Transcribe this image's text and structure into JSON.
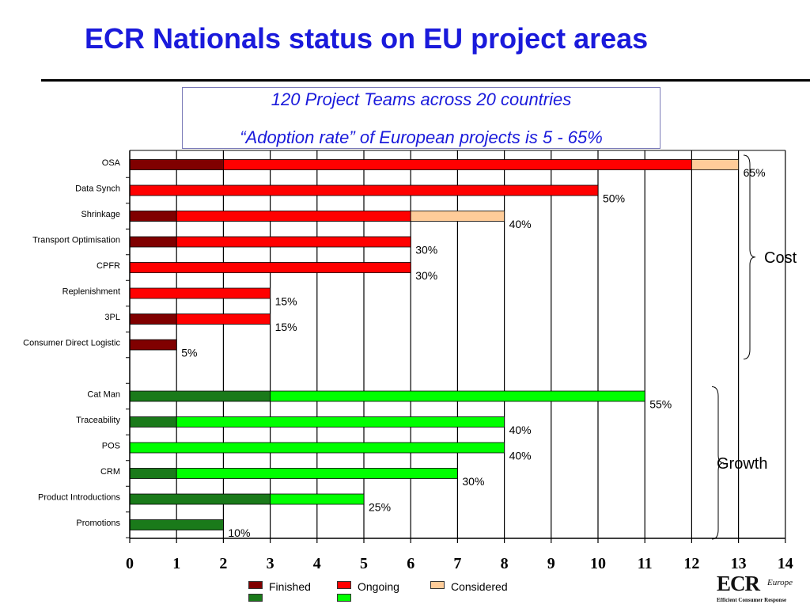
{
  "title": "ECR Nationals status on EU project areas",
  "subtitle": {
    "line1": "120 Project Teams across 20 countries",
    "line2": "“Adoption rate” of European projects is 5 - 65%"
  },
  "chart_data": {
    "type": "bar",
    "orientation": "horizontal",
    "stacked": true,
    "xlim": [
      0,
      14
    ],
    "x_ticks": [
      0,
      1,
      2,
      3,
      4,
      5,
      6,
      7,
      8,
      9,
      10,
      11,
      12,
      13,
      14
    ],
    "grid": "vertical",
    "legend_position": "bottom",
    "groups": [
      {
        "name": "Cost",
        "colors": {
          "Finished": "#800000",
          "Ongoing": "#ff0000",
          "Considered": "#ffcc99"
        },
        "rows": [
          {
            "label": "OSA",
            "Finished": 2,
            "Ongoing": 10,
            "Considered": 1,
            "rate": "65%"
          },
          {
            "label": "Data Synch",
            "Finished": 0,
            "Ongoing": 10,
            "Considered": 0,
            "rate": "50%"
          },
          {
            "label": "Shrinkage",
            "Finished": 1,
            "Ongoing": 5,
            "Considered": 2,
            "rate": "40%"
          },
          {
            "label": "Transport Optimisation",
            "Finished": 1,
            "Ongoing": 5,
            "Considered": 0,
            "rate": "30%"
          },
          {
            "label": "CPFR",
            "Finished": 0,
            "Ongoing": 6,
            "Considered": 0,
            "rate": "30%"
          },
          {
            "label": "Replenishment",
            "Finished": 0,
            "Ongoing": 3,
            "Considered": 0,
            "rate": "15%"
          },
          {
            "label": "3PL",
            "Finished": 1,
            "Ongoing": 2,
            "Considered": 0,
            "rate": "15%"
          },
          {
            "label": "Consumer Direct Logistic",
            "Finished": 1,
            "Ongoing": 0,
            "Considered": 0,
            "rate": "5%"
          }
        ]
      },
      {
        "name": "Growth",
        "colors": {
          "Finished": "#1a7a1a",
          "Ongoing": "#00ff00",
          "Considered": "#ccffcc"
        },
        "rows": [
          {
            "label": "Cat Man",
            "Finished": 3,
            "Ongoing": 8,
            "Considered": 0,
            "rate": "55%"
          },
          {
            "label": "Traceability",
            "Finished": 1,
            "Ongoing": 7,
            "Considered": 0,
            "rate": "40%"
          },
          {
            "label": "POS",
            "Finished": 0,
            "Ongoing": 8,
            "Considered": 0,
            "rate": "40%"
          },
          {
            "label": "CRM",
            "Finished": 1,
            "Ongoing": 6,
            "Considered": 0,
            "rate": "30%"
          },
          {
            "label": "Product Introductions",
            "Finished": 3,
            "Ongoing": 2,
            "Considered": 0,
            "rate": "25%"
          },
          {
            "label": "Promotions",
            "Finished": 2,
            "Ongoing": 0,
            "Considered": 0,
            "rate": "10%"
          }
        ]
      }
    ]
  },
  "legend": {
    "finished": "Finished",
    "ongoing": "Ongoing",
    "considered": "Considered",
    "colors": {
      "finished_cost": "#800000",
      "finished_growth": "#1a7a1a",
      "ongoing_cost": "#ff0000",
      "ongoing_growth": "#00ff00",
      "considered_cost": "#ffcc99"
    }
  },
  "logo": {
    "mark": "ECR",
    "sub1": "Europe",
    "sub2": "Efficient Consumer Response"
  }
}
